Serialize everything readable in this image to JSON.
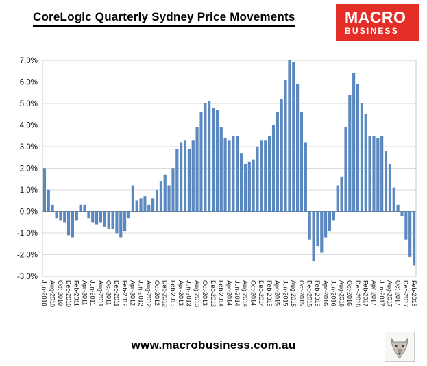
{
  "header": {
    "title": "CoreLogic Quarterly Sydney Price Movements",
    "logo": {
      "line1": "MACRO",
      "line2": "BUSINESS",
      "bg_color": "#e42f29",
      "text_color": "#ffffff"
    }
  },
  "footer": {
    "url": "www.macrobusiness.com.au",
    "logo_icon": "wolf-logo"
  },
  "chart_data": {
    "type": "bar",
    "title": "CoreLogic Quarterly Sydney Price Movements",
    "x": [
      "Jun-2010",
      "Jul-2010",
      "Aug-2010",
      "Sep-2010",
      "Oct-2010",
      "Nov-2010",
      "Dec-2010",
      "Jan-2011",
      "Feb-2011",
      "Mar-2011",
      "Apr-2011",
      "May-2011",
      "Jun-2011",
      "Jul-2011",
      "Aug-2011",
      "Sep-2011",
      "Oct-2011",
      "Nov-2011",
      "Dec-2011",
      "Jan-2012",
      "Feb-2012",
      "Mar-2012",
      "Apr-2012",
      "May-2012",
      "Jun-2012",
      "Jul-2012",
      "Aug-2012",
      "Sep-2012",
      "Oct-2012",
      "Nov-2012",
      "Dec-2012",
      "Jan-2013",
      "Feb-2013",
      "Mar-2013",
      "Apr-2013",
      "May-2013",
      "Jun-2013",
      "Jul-2013",
      "Aug-2013",
      "Sep-2013",
      "Oct-2013",
      "Nov-2013",
      "Dec-2013",
      "Jan-2014",
      "Feb-2014",
      "Mar-2014",
      "Apr-2014",
      "May-2014",
      "Jun-2014",
      "Jul-2014",
      "Aug-2014",
      "Sep-2014",
      "Oct-2014",
      "Nov-2014",
      "Dec-2014",
      "Jan-2015",
      "Feb-2015",
      "Mar-2015",
      "Apr-2015",
      "May-2015",
      "Jun-2015",
      "Jul-2015",
      "Aug-2015",
      "Sep-2015",
      "Oct-2015",
      "Nov-2015",
      "Dec-2015",
      "Jan-2016",
      "Feb-2016",
      "Mar-2016",
      "Apr-2016",
      "May-2016",
      "Jun-2016",
      "Jul-2016",
      "Aug-2016",
      "Sep-2016",
      "Oct-2016",
      "Nov-2016",
      "Dec-2016",
      "Jan-2017",
      "Feb-2017",
      "Mar-2017",
      "Apr-2017",
      "May-2017",
      "Jun-2017",
      "Jul-2017",
      "Aug-2017",
      "Sep-2017",
      "Oct-2017",
      "Nov-2017",
      "Dec-2017",
      "Jan-2018",
      "Feb-2018"
    ],
    "values": [
      2.0,
      1.0,
      0.3,
      -0.3,
      -0.4,
      -0.5,
      -1.1,
      -1.2,
      -0.4,
      0.3,
      0.3,
      -0.3,
      -0.5,
      -0.6,
      -0.5,
      -0.7,
      -0.8,
      -0.8,
      -1.0,
      -1.2,
      -0.9,
      -0.3,
      1.2,
      0.5,
      0.6,
      0.7,
      0.3,
      0.6,
      1.0,
      1.4,
      1.7,
      1.2,
      2.0,
      2.9,
      3.2,
      3.3,
      2.9,
      3.3,
      3.9,
      4.6,
      5.0,
      5.1,
      4.8,
      4.7,
      3.9,
      3.4,
      3.3,
      3.5,
      3.5,
      2.7,
      2.2,
      2.3,
      2.4,
      3.0,
      3.3,
      3.3,
      3.5,
      4.0,
      4.6,
      5.2,
      6.1,
      7.0,
      6.9,
      5.9,
      4.6,
      3.2,
      -1.3,
      -2.3,
      -1.6,
      -1.9,
      -1.2,
      -0.9,
      -0.4,
      1.2,
      1.6,
      3.9,
      5.4,
      6.4,
      5.9,
      5.0,
      4.5,
      3.5,
      3.5,
      3.4,
      3.5,
      2.8,
      2.2,
      1.1,
      0.3,
      -0.2,
      -1.3,
      -2.1,
      -2.5
    ],
    "xlabel": "",
    "ylabel": "",
    "ylim": [
      -3,
      7
    ],
    "ytick_step": 1,
    "ytick_suffix": "%",
    "x_tick_every": 2,
    "grid": true,
    "legend": "none",
    "bar_color": "#5b8ac2",
    "bar_stroke": "#4574ad",
    "grid_color": "#d9d9d9",
    "axis_color": "#888888",
    "plot_border_color": "#c9c9c9",
    "tick_label_color": "#111111"
  }
}
